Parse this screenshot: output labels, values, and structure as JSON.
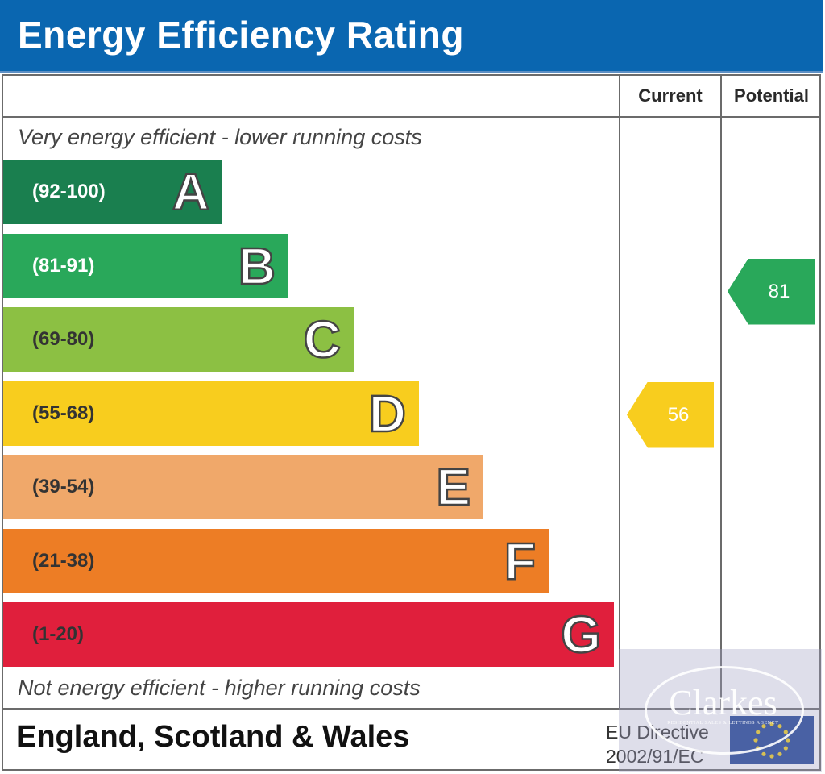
{
  "title": "Energy Efficiency Rating",
  "columns": {
    "current": "Current",
    "potential": "Potential"
  },
  "notes": {
    "top": "Very energy efficient - lower running costs",
    "bottom": "Not energy efficient - higher running costs"
  },
  "footer": {
    "region": "England, Scotland & Wales",
    "eu_line1": "EU Directive",
    "eu_line2": "2002/91/EC"
  },
  "watermark": {
    "brand": "Clarkes",
    "tagline": "RESIDENTIAL SALES & LETTINGS AGENCY"
  },
  "chart_data": {
    "type": "bar",
    "title": "Energy Efficiency Rating",
    "categories": [
      "A",
      "B",
      "C",
      "D",
      "E",
      "F",
      "G"
    ],
    "bands": [
      {
        "letter": "A",
        "range": "(92-100)",
        "color": "#1a7f4f",
        "range_color": "#ffffff"
      },
      {
        "letter": "B",
        "range": "(81-91)",
        "color": "#29a85a",
        "range_color": "#ffffff"
      },
      {
        "letter": "C",
        "range": "(69-80)",
        "color": "#8cc043",
        "range_color": "#333333"
      },
      {
        "letter": "D",
        "range": "(55-68)",
        "color": "#f8cd1e",
        "range_color": "#333333"
      },
      {
        "letter": "E",
        "range": "(39-54)",
        "color": "#f0a86a",
        "range_color": "#333333"
      },
      {
        "letter": "F",
        "range": "(21-38)",
        "color": "#ed7d25",
        "range_color": "#333333"
      },
      {
        "letter": "G",
        "range": "(1-20)",
        "color": "#e01f3c",
        "range_color": "#333333"
      }
    ],
    "current": {
      "value": 56,
      "band": "D",
      "color": "#f8cd1e"
    },
    "potential": {
      "value": 81,
      "band": "B",
      "color": "#29a85a"
    }
  }
}
